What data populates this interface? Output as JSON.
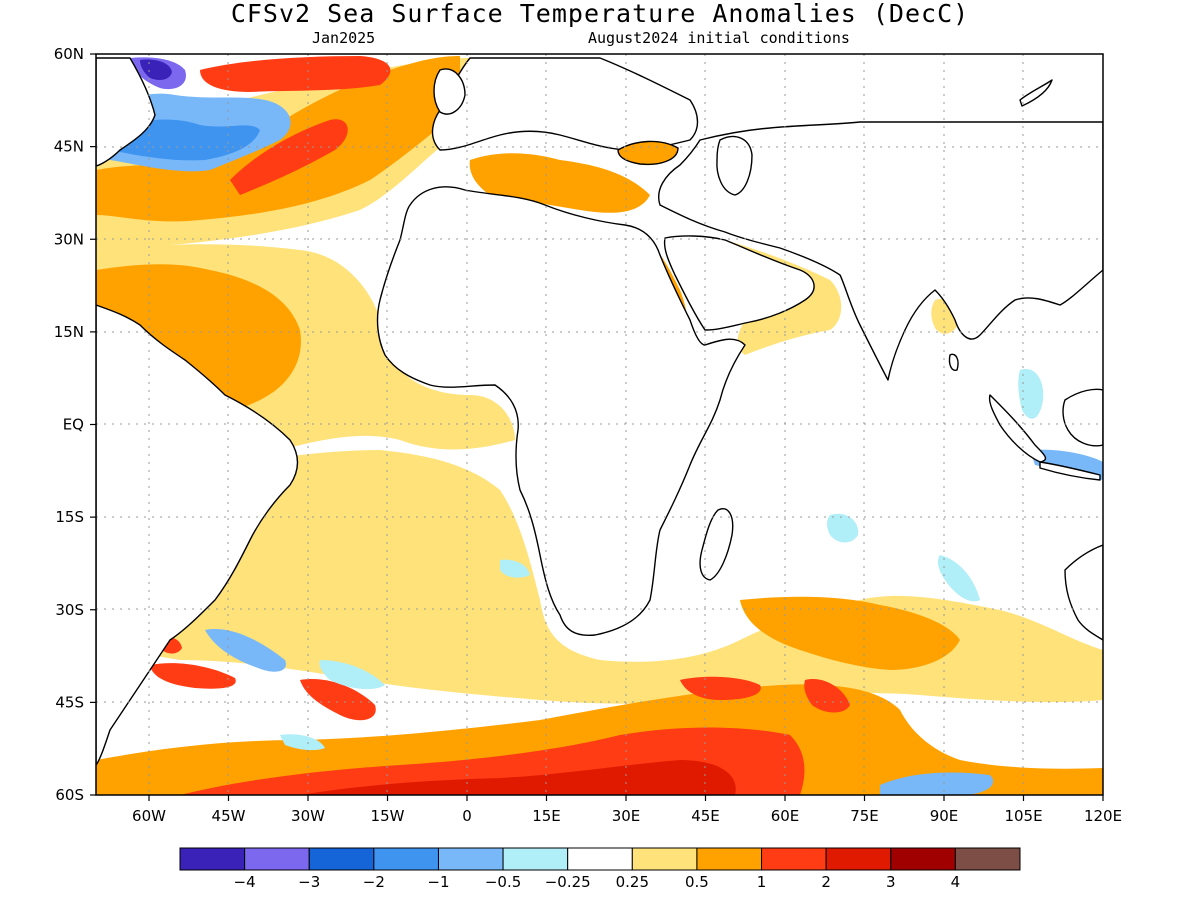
{
  "header": {
    "title": "CFSv2 Sea Surface Temperature Anomalies (DecC)",
    "forecast_month": "Jan2025",
    "initial_conditions": "August2024 initial conditions"
  },
  "axes": {
    "lat_labels": [
      "60N",
      "45N",
      "30N",
      "15N",
      "EQ",
      "15S",
      "30S",
      "45S",
      "60S"
    ],
    "lat_values": [
      60,
      45,
      30,
      15,
      0,
      -15,
      -30,
      -45,
      -60
    ],
    "lon_labels": [
      "60W",
      "45W",
      "30W",
      "15W",
      "0",
      "15E",
      "30E",
      "45E",
      "60E",
      "75E",
      "90E",
      "105E",
      "120E"
    ],
    "lon_values": [
      -60,
      -45,
      -30,
      -15,
      0,
      15,
      30,
      45,
      60,
      75,
      90,
      105,
      120
    ],
    "lon_range": [
      -70,
      120
    ],
    "lat_range": [
      -60,
      60
    ],
    "grid": "dotted"
  },
  "colorbar": {
    "colors": [
      "#3a22b8",
      "#7b68ee",
      "#1565d8",
      "#3f94f0",
      "#78b8f8",
      "#b0eef8",
      "#ffffff",
      "#ffe27a",
      "#ffa200",
      "#ff3c14",
      "#e01a00",
      "#a00000",
      "#7d4e45"
    ],
    "labels": [
      "-4",
      "-3",
      "-2",
      "-1",
      "-0.5",
      "-0.25",
      "0.25",
      "0.5",
      "1",
      "2",
      "3",
      "4"
    ]
  },
  "colors": {
    "land": "#ffffff",
    "coast": "#000000"
  }
}
